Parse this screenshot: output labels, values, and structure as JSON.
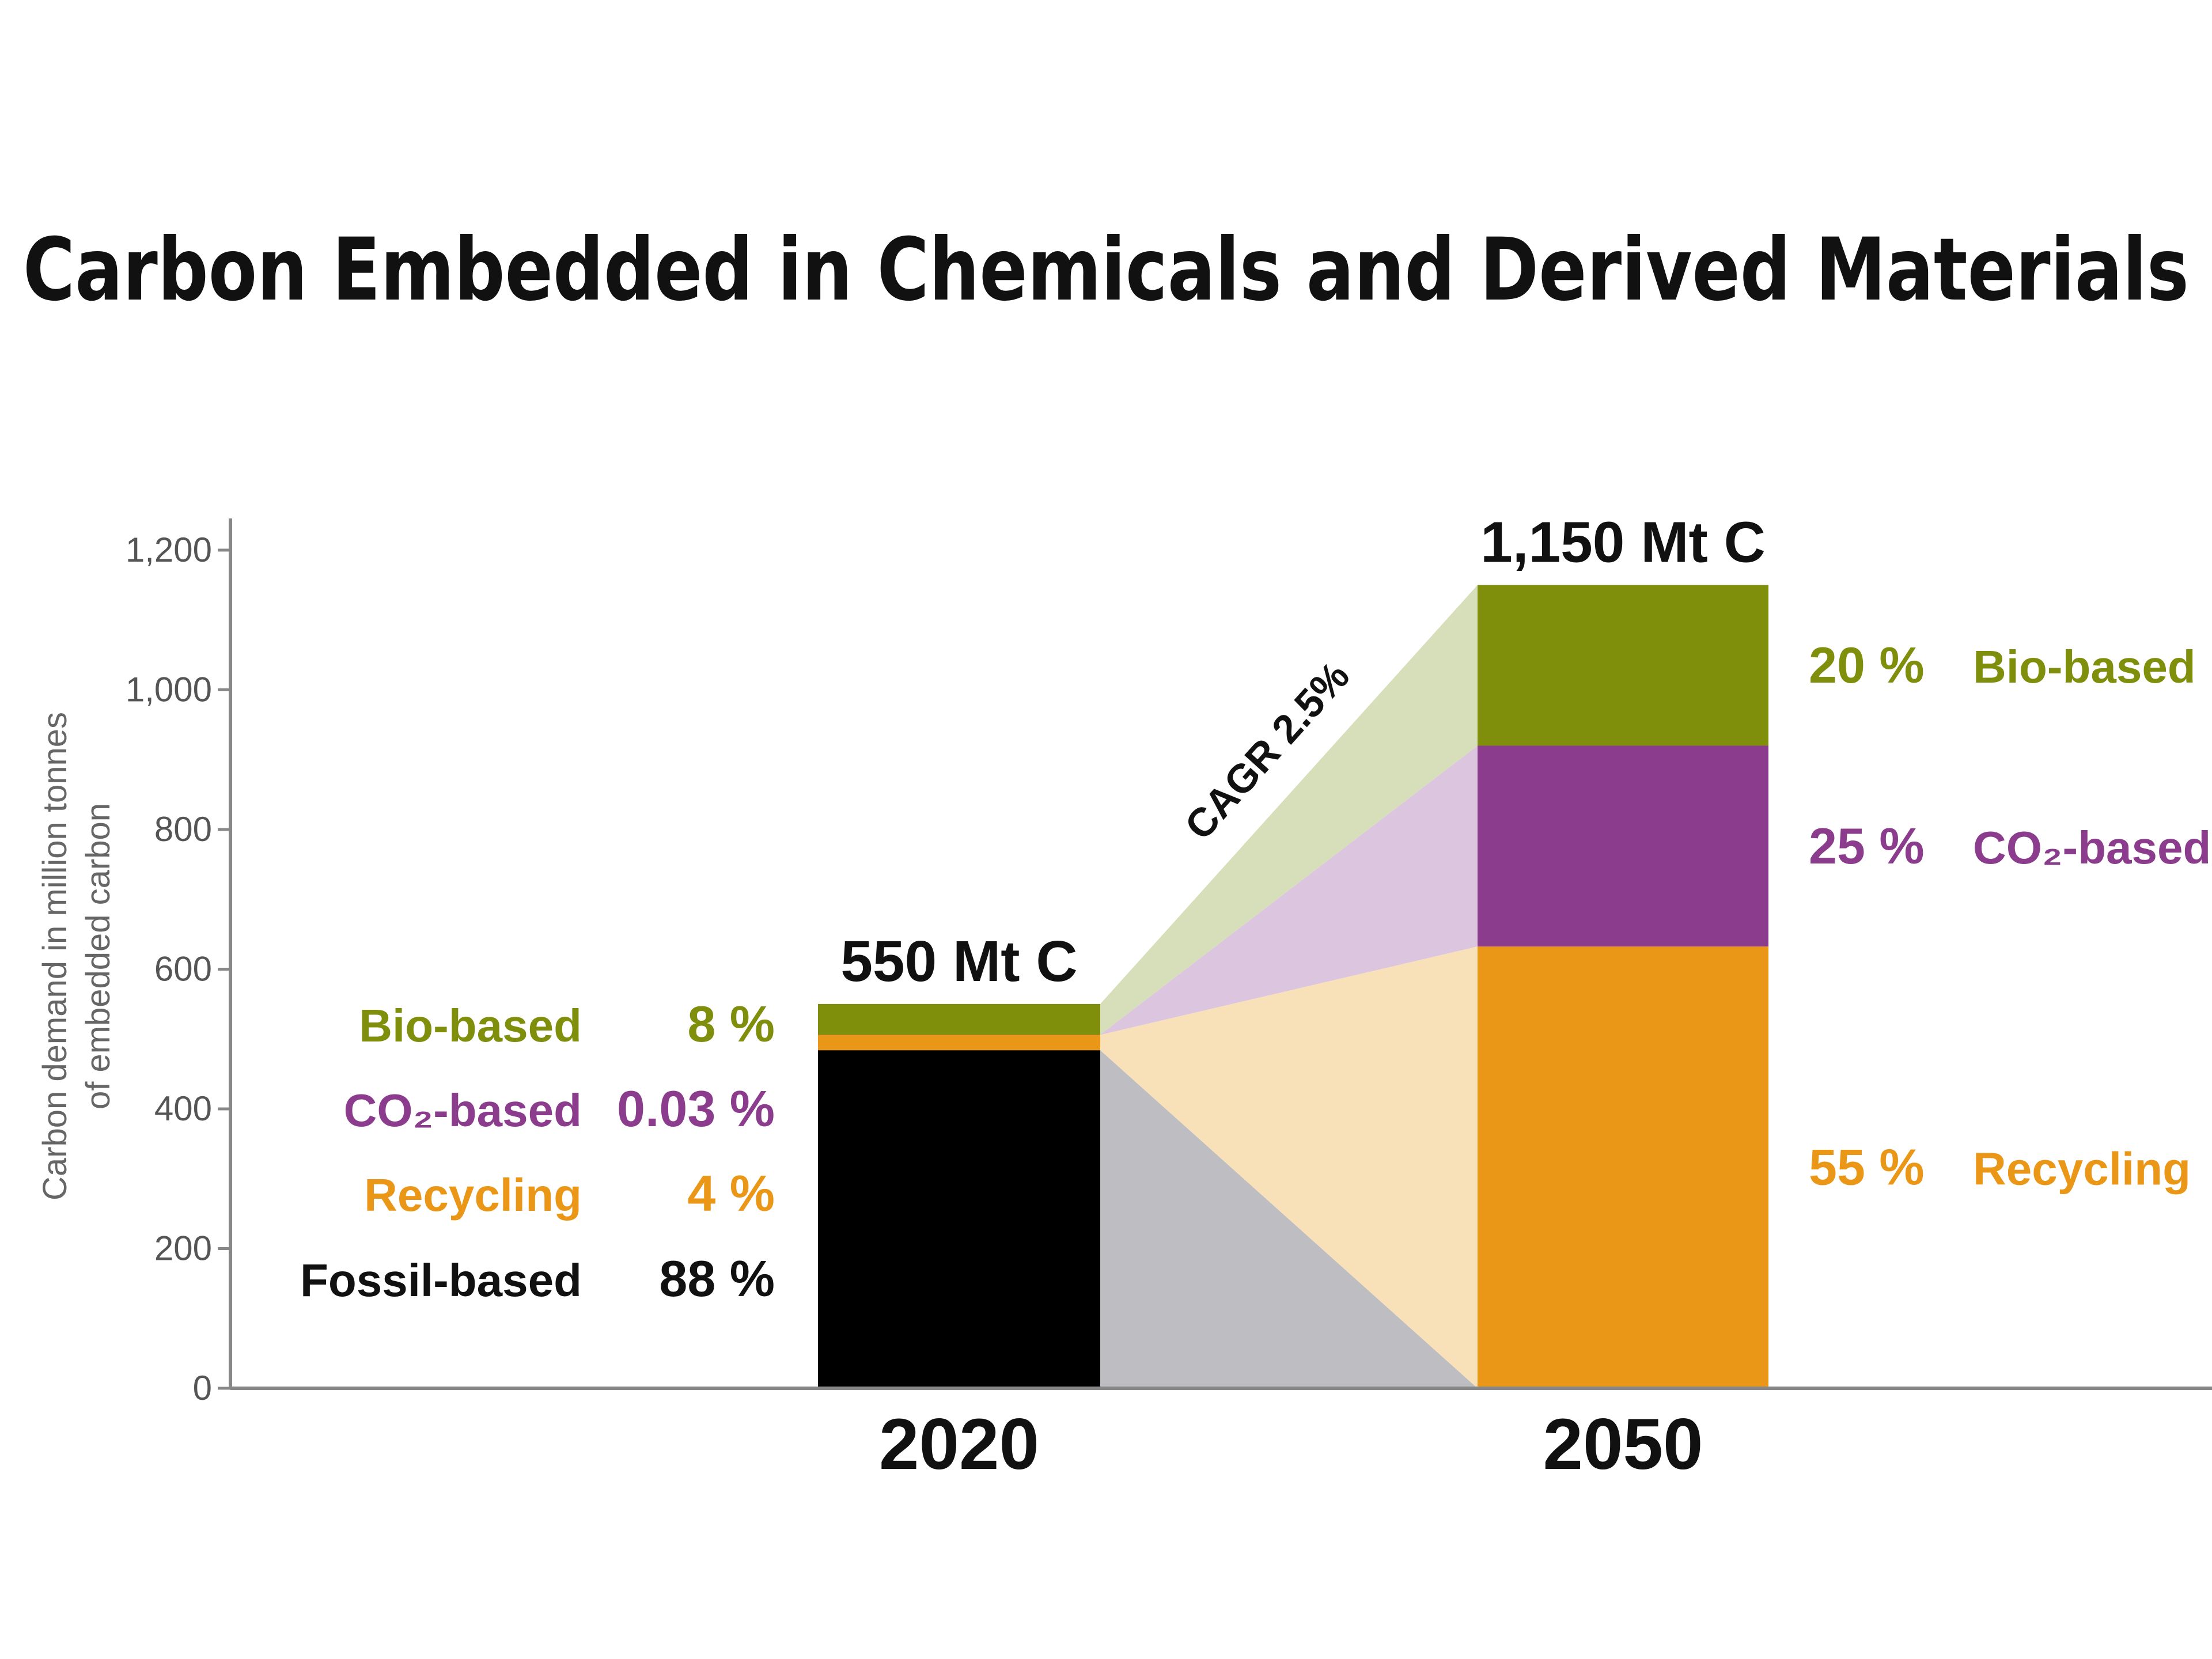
{
  "chart_data": {
    "type": "bar",
    "stacked": true,
    "title": "Carbon Embedded in Chemicals and Derived Materials",
    "ylabel": [
      "Carbon demand in million tonnes",
      "of embedded carbon"
    ],
    "xlabel": "",
    "ylim": [
      0,
      1250
    ],
    "yticks": [
      0,
      200,
      400,
      600,
      800,
      1000,
      1200
    ],
    "ytick_labels": [
      "0",
      "200",
      "400",
      "600",
      "800",
      "1,000",
      "1,200"
    ],
    "categories": [
      "2020",
      "2050"
    ],
    "totals": [
      550,
      1150
    ],
    "total_labels": [
      "550 Mt C",
      "1,150 Mt C"
    ],
    "series": [
      {
        "name": "Fossil-based",
        "color": "#000000",
        "flow_color": "#bdbdc2",
        "values": [
          484,
          0
        ],
        "pct_labels": [
          "88 %",
          ""
        ]
      },
      {
        "name": "Recycling",
        "color": "#ea9616",
        "flow_color": "#f8e1b8",
        "values": [
          22,
          632.5
        ],
        "pct_labels": [
          "4 %",
          "55 %"
        ]
      },
      {
        "name": "CO₂-based",
        "color": "#8b3c8d",
        "flow_color": "#dcc6df",
        "values": [
          0.17,
          287.5
        ],
        "pct_labels": [
          "0.03 %",
          "25 %"
        ]
      },
      {
        "name": "Bio-based",
        "color": "#7f8f0c",
        "flow_color": "#d6dfb9",
        "values": [
          44,
          230
        ],
        "pct_labels": [
          "8 %",
          "20 %"
        ]
      }
    ],
    "left_legend": [
      {
        "label": "Bio-based",
        "pct": "8 %",
        "color": "#7f8f0c"
      },
      {
        "label": "CO₂-based",
        "pct": "0.03 %",
        "color": "#8b3c8d"
      },
      {
        "label": "Recycling",
        "pct": "4 %",
        "color": "#ea9616"
      },
      {
        "label": "Fossil-based",
        "pct": "88 %",
        "color": "#111111"
      }
    ],
    "right_legend": [
      {
        "label": "Bio-based",
        "pct": "20 %",
        "color": "#7f8f0c"
      },
      {
        "label": "CO₂-based",
        "pct": "25 %",
        "color": "#8b3c8d"
      },
      {
        "label": "Recycling",
        "pct": "55 %",
        "color": "#ea9616"
      }
    ],
    "annotation": "CAGR 2.5%"
  }
}
